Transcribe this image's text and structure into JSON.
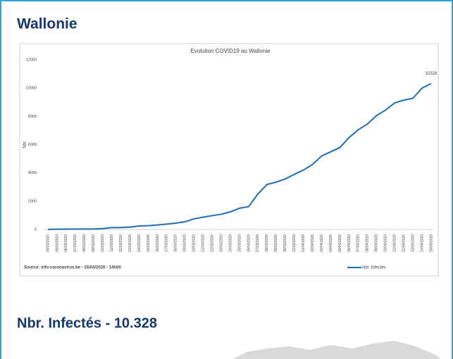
{
  "header": {
    "title": "Wallonie"
  },
  "footer": {
    "text": "Nbr. Infectés - 10.328"
  },
  "chart_data": {
    "type": "line",
    "title": "Evolution COVID19 au Wallonie",
    "y_label": "Nbr.",
    "source": "Source: info-coronavirus.be  - 16/04/2020 - 14h00",
    "categories": [
      "04/03/2020",
      "05/03/2020",
      "06/03/2020",
      "07/03/2020",
      "08/03/2020",
      "09/03/2020",
      "10/03/2020",
      "11/03/2020",
      "12/03/2020",
      "13/03/2020",
      "14/03/2020",
      "15/03/2020",
      "16/03/2020",
      "17/03/2020",
      "18/03/2020",
      "19/03/2020",
      "20/03/2020",
      "21/03/2020",
      "22/03/2020",
      "23/03/2020",
      "24/03/2020",
      "25/03/2020",
      "26/03/2020",
      "27/03/2020",
      "28/03/2020",
      "29/03/2020",
      "30/03/2020",
      "31/03/2020",
      "01/04/2020",
      "02/04/2020",
      "03/04/2020",
      "04/04/2020",
      "05/04/2020",
      "06/04/2020",
      "07/04/2020",
      "08/04/2020",
      "09/04/2020",
      "10/04/2020",
      "11/04/2020",
      "12/04/2020",
      "13/04/2020",
      "14/04/2020",
      "15/04/2020"
    ],
    "series": [
      {
        "name": "Nbr. Infectés",
        "color": "#1f6db5",
        "values": [
          5,
          20,
          25,
          30,
          30,
          35,
          60,
          130,
          140,
          170,
          250,
          270,
          320,
          380,
          450,
          540,
          750,
          870,
          980,
          1080,
          1250,
          1500,
          1620,
          2500,
          3180,
          3350,
          3570,
          3900,
          4200,
          4600,
          5200,
          5500,
          5800,
          6500,
          7050,
          7450,
          8050,
          8450,
          8950,
          9150,
          9280,
          10000,
          10328
        ]
      }
    ],
    "ylim": [
      0,
      12000
    ],
    "yticks": [
      0,
      2000,
      4000,
      6000,
      8000,
      10000,
      12000
    ],
    "grid": false,
    "legend": "bottom"
  }
}
